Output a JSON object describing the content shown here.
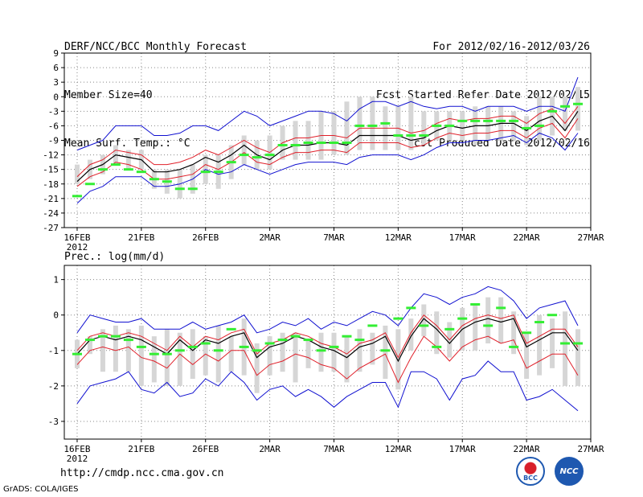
{
  "header": {
    "left_lines": [
      "DERF/NCC/BCC Monthly Forecast",
      "Member Size=40",
      "Mean Surf. Temp.: °C"
    ],
    "right_lines": [
      "For 2012/02/16-2012/03/26",
      "Fcst Started Refer Date 2012/02/15",
      "Fcst Produced Date 2012/02/16"
    ]
  },
  "footer": {
    "url": "http://cmdp.ncc.cma.gov.cn",
    "credit": "GrADS: COLA/IGES"
  },
  "logos": {
    "bcc": "BCC",
    "ncc": "NCC"
  },
  "colors": {
    "median": "#000000",
    "band": "#e0202a",
    "envelope": "#1010d0",
    "box": "#d6d6d6",
    "observed": "#33ee33",
    "grid": "#888888"
  },
  "chart_data": [
    {
      "type": "box-envelope",
      "title": "Mean Surf. Temp.: °C",
      "ylim": [
        -27,
        9
      ],
      "yticks": [
        9,
        6,
        3,
        0,
        -3,
        -6,
        -9,
        -12,
        -15,
        -18,
        -21,
        -24,
        -27
      ],
      "xtick_days": [
        1,
        6,
        11,
        16,
        21,
        26,
        31,
        36,
        41
      ],
      "xtick_labels": [
        "16FEB",
        "21FEB",
        "26FEB",
        "2MAR",
        "7MAR",
        "12MAR",
        "17MAR",
        "22MAR",
        "27MAR"
      ],
      "xtick_year": "2012",
      "x_days": [
        1,
        2,
        3,
        4,
        5,
        6,
        7,
        8,
        9,
        10,
        11,
        12,
        13,
        14,
        15,
        16,
        17,
        18,
        19,
        20,
        21,
        22,
        23,
        24,
        25,
        26,
        27,
        28,
        29,
        30,
        31,
        32,
        33,
        34,
        35,
        36,
        37,
        38,
        39,
        40
      ],
      "box_low": [
        -18,
        -17,
        -16,
        -14,
        -15,
        -15,
        -19,
        -20,
        -21,
        -20,
        -18,
        -19,
        -17,
        -14,
        -15,
        -15,
        -13,
        -13,
        -13,
        -13,
        -12,
        -12,
        -11,
        -11,
        -11,
        -11,
        -11,
        -10,
        -9,
        -9,
        -9,
        -10,
        -9,
        -9,
        -9,
        -10,
        -9,
        -8,
        -7,
        -7
      ],
      "box_high": [
        -14,
        -13,
        -12,
        -10,
        -11,
        -11,
        -15,
        -15,
        -15,
        -14,
        -12,
        -12,
        -10,
        -8,
        -9,
        -8,
        -6,
        -5,
        -5,
        -3,
        -3,
        -1,
        0,
        0,
        -2,
        -2,
        0,
        -3,
        -3,
        -3,
        -3,
        -2,
        -2,
        -2,
        -3,
        -4,
        0,
        0,
        0,
        2
      ],
      "median": [
        -17.5,
        -15,
        -14,
        -12,
        -12.5,
        -13,
        -15.5,
        -15.5,
        -15,
        -14,
        -12.5,
        -13.5,
        -12,
        -10,
        -12,
        -13,
        -11,
        -10,
        -10,
        -9.5,
        -9.5,
        -10,
        -8,
        -8,
        -8,
        -8,
        -9,
        -8.5,
        -7,
        -6,
        -6.5,
        -6,
        -6,
        -5.5,
        -5.5,
        -7,
        -5,
        -4,
        -7,
        -3
      ],
      "band_low": [
        -18.5,
        -16.5,
        -15.5,
        -13.5,
        -14,
        -15,
        -17,
        -17,
        -16.5,
        -16,
        -14,
        -15,
        -13.5,
        -11.5,
        -13.5,
        -14,
        -12.5,
        -11.5,
        -11.5,
        -11,
        -11,
        -11.5,
        -9.5,
        -9.5,
        -9.5,
        -9.5,
        -10.5,
        -10,
        -8.5,
        -7.5,
        -8,
        -7.5,
        -7.5,
        -7,
        -7,
        -8.5,
        -6.5,
        -5.5,
        -8.5,
        -4.5
      ],
      "band_high": [
        -16.5,
        -14,
        -13,
        -11,
        -11.5,
        -12,
        -14,
        -14,
        -13.5,
        -12.5,
        -11,
        -12,
        -10.5,
        -9,
        -10.5,
        -11.5,
        -9.5,
        -8.5,
        -8.5,
        -8,
        -8,
        -8.5,
        -6.5,
        -6.5,
        -6.5,
        -6.5,
        -7.5,
        -7,
        -5.5,
        -4.5,
        -5,
        -4.5,
        -4.5,
        -4,
        -4,
        -5.5,
        -3.5,
        -2.5,
        -5.5,
        -2
      ],
      "env_low": [
        -22,
        -19.5,
        -18.5,
        -16.5,
        -16.5,
        -16.5,
        -18.5,
        -18.5,
        -18,
        -17,
        -15,
        -16,
        -15.5,
        -14,
        -15,
        -16,
        -15,
        -14,
        -13.5,
        -13.5,
        -13.5,
        -14,
        -12.5,
        -12,
        -12,
        -12,
        -13,
        -12,
        -10.5,
        -9.5,
        -9.5,
        -9,
        -9,
        -8.5,
        -8,
        -9.5,
        -7.5,
        -8.5,
        -11,
        -7.5
      ],
      "env_high": [
        -11,
        -10,
        -9,
        -6,
        -6,
        -6,
        -8,
        -8,
        -7.5,
        -6,
        -6,
        -7,
        -5,
        -3,
        -4,
        -6,
        -5,
        -4,
        -3,
        -3,
        -3.5,
        -5,
        -2.5,
        -1,
        -1,
        -2,
        -1,
        -2,
        -2.5,
        -2,
        -2,
        -3,
        -2,
        -2,
        -2,
        -3,
        -2,
        -2,
        -3,
        4
      ],
      "observed": [
        -20.5,
        -18,
        -15,
        -14,
        -15,
        -15.5,
        -17,
        -17.5,
        -19,
        -19,
        -15.5,
        -15.5,
        -13.5,
        -12,
        -12.5,
        -12,
        -10,
        -10,
        -9.5,
        -9.5,
        -9.5,
        -9.5,
        -6,
        -6,
        -5.5,
        -8,
        -8,
        -8,
        -6,
        -6,
        -5,
        -5,
        -5,
        -5,
        -5,
        -6.5,
        -6,
        -3,
        -2,
        -1.5
      ]
    },
    {
      "type": "box-envelope",
      "title": "Prec.: log(mm/d)",
      "ylim": [
        -3.5,
        1.4
      ],
      "yticks": [
        1,
        0,
        -1,
        -2,
        -3
      ],
      "xtick_days": [
        1,
        6,
        11,
        16,
        21,
        26,
        31,
        36,
        41
      ],
      "xtick_labels": [
        "16FEB",
        "21FEB",
        "26FEB",
        "2MAR",
        "7MAR",
        "12MAR",
        "17MAR",
        "22MAR",
        "27MAR"
      ],
      "xtick_year": "2012",
      "x_days": [
        1,
        2,
        3,
        4,
        5,
        6,
        7,
        8,
        9,
        10,
        11,
        12,
        13,
        14,
        15,
        16,
        17,
        18,
        19,
        20,
        21,
        22,
        23,
        24,
        25,
        26,
        27,
        28,
        29,
        30,
        31,
        32,
        33,
        34,
        35,
        36,
        37,
        38,
        39,
        40
      ],
      "box_low": [
        -1.5,
        -1.1,
        -1.6,
        -1.6,
        -1.6,
        -2.0,
        -1.9,
        -2.0,
        -2.0,
        -1.8,
        -1.7,
        -1.9,
        -1.6,
        -1.7,
        -2.2,
        -1.7,
        -1.6,
        -1.9,
        -1.5,
        -1.6,
        -1.6,
        -1.9,
        -1.6,
        -1.4,
        -1.8,
        -2.1,
        -1.0,
        -0.6,
        -1.1,
        -1.2,
        -1.0,
        -1.0,
        -0.8,
        -0.8,
        -1.1,
        -1.8,
        -1.7,
        -1.5,
        -2.0,
        -2.0
      ],
      "box_high": [
        -0.7,
        -0.6,
        -0.4,
        -0.3,
        -0.4,
        -0.3,
        -0.6,
        -0.4,
        -0.5,
        -0.4,
        -0.6,
        -0.3,
        -0.6,
        -0.1,
        -0.8,
        -0.6,
        -0.5,
        -0.5,
        -0.7,
        -0.5,
        -0.5,
        -0.6,
        -0.4,
        -0.5,
        -0.3,
        -0.4,
        -0.1,
        0.3,
        0.1,
        -0.2,
        0.2,
        0.3,
        0.5,
        0.5,
        0.1,
        -0.5,
        0.0,
        -0.1,
        0.1,
        -0.4
      ],
      "median": [
        -1.1,
        -0.7,
        -0.6,
        -0.7,
        -0.6,
        -0.7,
        -0.9,
        -1.1,
        -0.7,
        -1.0,
        -0.7,
        -0.8,
        -0.6,
        -0.5,
        -1.2,
        -0.9,
        -0.8,
        -0.6,
        -0.7,
        -0.9,
        -1.0,
        -1.2,
        -0.9,
        -0.8,
        -0.6,
        -1.3,
        -0.6,
        -0.1,
        -0.4,
        -0.8,
        -0.4,
        -0.2,
        -0.1,
        -0.2,
        -0.1,
        -0.9,
        -0.7,
        -0.5,
        -0.5,
        -1.0
      ],
      "band_low": [
        -1.4,
        -1.0,
        -0.9,
        -1.0,
        -0.9,
        -1.2,
        -1.3,
        -1.5,
        -1.1,
        -1.4,
        -1.1,
        -1.3,
        -1.0,
        -1.0,
        -1.7,
        -1.4,
        -1.3,
        -1.1,
        -1.2,
        -1.4,
        -1.5,
        -1.8,
        -1.5,
        -1.3,
        -1.1,
        -1.9,
        -1.2,
        -0.6,
        -0.9,
        -1.3,
        -0.9,
        -0.7,
        -0.6,
        -0.8,
        -0.7,
        -1.5,
        -1.3,
        -1.1,
        -1.1,
        -1.7
      ],
      "band_high": [
        -1.0,
        -0.6,
        -0.5,
        -0.6,
        -0.5,
        -0.6,
        -0.8,
        -1.0,
        -0.6,
        -0.9,
        -0.6,
        -0.7,
        -0.5,
        -0.4,
        -1.1,
        -0.8,
        -0.7,
        -0.5,
        -0.6,
        -0.8,
        -0.9,
        -1.1,
        -0.8,
        -0.7,
        -0.5,
        -1.2,
        -0.5,
        0.0,
        -0.3,
        -0.7,
        -0.3,
        -0.1,
        0.0,
        -0.1,
        0.0,
        -0.8,
        -0.6,
        -0.4,
        -0.4,
        -0.9
      ],
      "env_low": [
        -2.5,
        -2.0,
        -1.9,
        -1.8,
        -1.6,
        -2.1,
        -2.2,
        -1.9,
        -2.3,
        -2.2,
        -1.8,
        -2.0,
        -1.6,
        -1.9,
        -2.4,
        -2.1,
        -2.0,
        -2.3,
        -2.1,
        -2.3,
        -2.6,
        -2.3,
        -2.1,
        -1.9,
        -1.9,
        -2.6,
        -1.6,
        -1.6,
        -1.8,
        -2.4,
        -1.8,
        -1.7,
        -1.3,
        -1.6,
        -1.6,
        -2.4,
        -2.3,
        -2.1,
        -2.4,
        -2.7
      ],
      "env_high": [
        -0.5,
        0.0,
        -0.1,
        -0.2,
        -0.2,
        -0.1,
        -0.4,
        -0.4,
        -0.4,
        -0.2,
        -0.4,
        -0.3,
        -0.2,
        0.0,
        -0.5,
        -0.4,
        -0.2,
        -0.3,
        -0.1,
        -0.4,
        -0.2,
        -0.3,
        -0.1,
        0.1,
        0.0,
        -0.3,
        0.2,
        0.6,
        0.5,
        0.3,
        0.5,
        0.6,
        0.8,
        0.7,
        0.4,
        -0.1,
        0.2,
        0.3,
        0.4,
        -0.3
      ],
      "observed": [
        -1.1,
        -0.7,
        -0.6,
        -0.6,
        -0.7,
        -0.9,
        -1.1,
        -1.1,
        -1.0,
        -0.9,
        -0.8,
        -1.0,
        -0.4,
        -0.9,
        -1.0,
        -0.8,
        -0.7,
        -0.6,
        -0.7,
        -1.0,
        -0.9,
        -0.6,
        -0.7,
        -0.3,
        -1.0,
        -0.1,
        0.2,
        -0.3,
        -0.9,
        -0.4,
        -0.1,
        0.3,
        -0.3,
        0.2,
        -0.9,
        -0.5,
        -0.2,
        0.0,
        -0.8,
        -0.8
      ]
    }
  ]
}
